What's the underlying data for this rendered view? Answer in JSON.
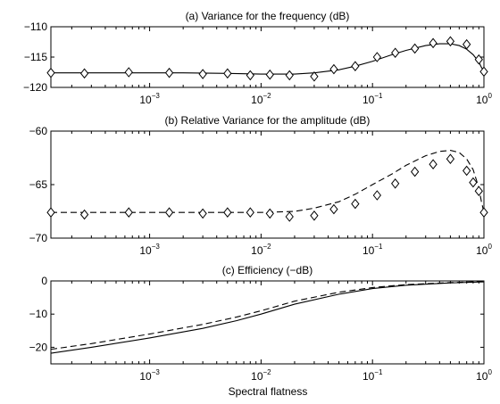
{
  "xlabel": "Spectral flatness",
  "colors": {
    "line": "#000000",
    "background": "#ffffff"
  },
  "chart_data": [
    {
      "type": "line",
      "title": "(a) Variance for the frequency (dB)",
      "xscale": "log",
      "xlim": [
        0.00013,
        1
      ],
      "ylim": [
        -120,
        -110
      ],
      "yticks": [
        -110,
        -115,
        -120
      ],
      "ytick_labels": [
        "−110",
        "−115",
        "−120"
      ],
      "xticks": [
        0.001,
        0.01,
        0.1,
        1
      ],
      "xtick_bases": [
        "10",
        "10",
        "10",
        "10"
      ],
      "xtick_exponents": [
        "−3",
        "−2",
        "−1",
        "0"
      ],
      "series": [
        {
          "style": "solid",
          "x": [
            0.00013,
            0.0005,
            0.002,
            0.005,
            0.01,
            0.02,
            0.03,
            0.05,
            0.07,
            0.1,
            0.15,
            0.2,
            0.3,
            0.4,
            0.5,
            0.6,
            0.7,
            0.8,
            0.9,
            0.95,
            1.0
          ],
          "y": [
            -117.6,
            -117.6,
            -117.6,
            -117.7,
            -117.8,
            -117.8,
            -117.6,
            -117.1,
            -116.5,
            -115.7,
            -114.6,
            -113.9,
            -113.1,
            -112.8,
            -112.8,
            -113.1,
            -113.7,
            -114.6,
            -115.8,
            -116.7,
            -117.3
          ]
        },
        {
          "style": "markers",
          "marker": "diamond",
          "x": [
            0.00013,
            0.00026,
            0.00065,
            0.0015,
            0.003,
            0.005,
            0.008,
            0.012,
            0.018,
            0.03,
            0.045,
            0.07,
            0.11,
            0.16,
            0.24,
            0.35,
            0.5,
            0.7,
            0.9,
            1.0
          ],
          "y": [
            -117.6,
            -117.7,
            -117.5,
            -117.6,
            -117.8,
            -117.7,
            -118.0,
            -117.9,
            -118.0,
            -118.2,
            -117.0,
            -116.5,
            -115.0,
            -114.3,
            -113.6,
            -112.7,
            -112.4,
            -112.9,
            -115.4,
            -117.4
          ]
        }
      ]
    },
    {
      "type": "line",
      "title": "(b) Relative Variance for the amplitude (dB)",
      "xscale": "log",
      "xlim": [
        0.00013,
        1
      ],
      "ylim": [
        -70,
        -60
      ],
      "yticks": [
        -60,
        -65,
        -70
      ],
      "ytick_labels": [
        "−60",
        "−65",
        "−70"
      ],
      "xticks": [
        0.001,
        0.01,
        0.1,
        1
      ],
      "xtick_bases": [
        "10",
        "10",
        "10",
        "10"
      ],
      "xtick_exponents": [
        "−3",
        "−2",
        "−1",
        "0"
      ],
      "series": [
        {
          "style": "dashed",
          "x": [
            0.00013,
            0.0005,
            0.002,
            0.005,
            0.01,
            0.02,
            0.03,
            0.05,
            0.07,
            0.1,
            0.15,
            0.2,
            0.3,
            0.4,
            0.5,
            0.6,
            0.7,
            0.8,
            0.9,
            0.95,
            1.0
          ],
          "y": [
            -67.6,
            -67.6,
            -67.6,
            -67.6,
            -67.6,
            -67.5,
            -67.2,
            -66.6,
            -65.9,
            -65.0,
            -64.0,
            -63.2,
            -62.3,
            -61.9,
            -61.8,
            -62.0,
            -62.6,
            -63.6,
            -65.3,
            -66.6,
            -67.6
          ]
        },
        {
          "style": "markers",
          "marker": "diamond",
          "x": [
            0.00013,
            0.00026,
            0.00065,
            0.0015,
            0.003,
            0.005,
            0.008,
            0.012,
            0.018,
            0.03,
            0.045,
            0.07,
            0.11,
            0.16,
            0.24,
            0.35,
            0.5,
            0.7,
            0.8,
            0.9,
            1.0
          ],
          "y": [
            -67.6,
            -67.8,
            -67.6,
            -67.6,
            -67.7,
            -67.6,
            -67.6,
            -67.7,
            -68.0,
            -67.9,
            -67.3,
            -66.8,
            -66.0,
            -64.9,
            -63.8,
            -63.1,
            -62.6,
            -63.7,
            -64.8,
            -65.6,
            -67.6
          ]
        }
      ]
    },
    {
      "type": "line",
      "title": "(c) Efficiency (−dB)",
      "xscale": "log",
      "xlim": [
        0.00013,
        1
      ],
      "ylim": [
        -25,
        0
      ],
      "yticks": [
        0,
        -10,
        -20
      ],
      "ytick_labels": [
        "0",
        "−10",
        "−20"
      ],
      "xticks": [
        0.001,
        0.01,
        0.1,
        1
      ],
      "xtick_bases": [
        "10",
        "10",
        "10",
        "10"
      ],
      "xtick_exponents": [
        "−3",
        "−2",
        "−1",
        "0"
      ],
      "xlabel": "Spectral flatness",
      "series": [
        {
          "style": "solid",
          "x": [
            0.00013,
            0.0003,
            0.001,
            0.003,
            0.006,
            0.01,
            0.02,
            0.05,
            0.1,
            0.2,
            0.5,
            1.0
          ],
          "y": [
            -21.8,
            -20.0,
            -17.2,
            -14.3,
            -12.0,
            -10.0,
            -7.0,
            -4.0,
            -2.3,
            -1.3,
            -0.6,
            -0.3
          ]
        },
        {
          "style": "dashed",
          "x": [
            0.00013,
            0.0003,
            0.001,
            0.003,
            0.006,
            0.01,
            0.02,
            0.05,
            0.1,
            0.2,
            0.5,
            1.0
          ],
          "y": [
            -20.6,
            -18.9,
            -16.0,
            -13.1,
            -10.9,
            -9.0,
            -6.1,
            -3.4,
            -2.0,
            -1.1,
            -0.5,
            -0.2
          ]
        }
      ]
    }
  ]
}
